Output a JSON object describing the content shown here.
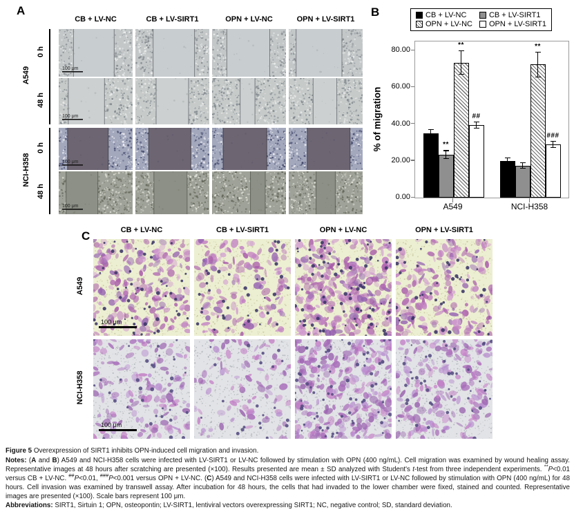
{
  "colors": {
    "bar_black": "#000000",
    "bar_gray": "#8f8f8f",
    "bar_white": "#ffffff",
    "bar_border": "#000000",
    "hatch_stroke": "#6e6e6e",
    "stain_purple": "#a757a9",
    "stain_magenta": "#c27fc3",
    "nuclei_navy": "#3a3666",
    "invasion_bg_yellow": "#edefd2",
    "invasion_bg_gray": "#e2e3e6"
  },
  "panel_a": {
    "label": "A",
    "column_headers": [
      "CB + LV-NC",
      "CB + LV-SIRT1",
      "OPN + LV-NC",
      "OPN + LV-SIRT1"
    ],
    "row_groups": [
      {
        "cell_line": "A549",
        "times": [
          "0 h",
          "48 h"
        ]
      },
      {
        "cell_line": "NCI-H358",
        "times": [
          "0 h",
          "48 h"
        ]
      }
    ],
    "scale_bar_label": "100 μm",
    "wound_rows": [
      {
        "cell_line": "A549",
        "time": "0 h",
        "style": "a549_0h",
        "gaps": [
          [
            0.2,
            0.75
          ],
          [
            0.24,
            0.8
          ],
          [
            0.2,
            0.78
          ],
          [
            0.1,
            0.72
          ]
        ]
      },
      {
        "cell_line": "A549",
        "time": "48 h",
        "style": "a549_48h",
        "gaps": [
          [
            0.13,
            0.62
          ],
          [
            0.28,
            0.72
          ],
          [
            0.38,
            0.58
          ],
          [
            0.33,
            0.65
          ]
        ]
      },
      {
        "cell_line": "NCI-H358",
        "time": "0 h",
        "style": "nci_0h",
        "gaps": [
          [
            0.12,
            0.67
          ],
          [
            0.18,
            0.75
          ],
          [
            0.15,
            0.74
          ],
          [
            0.25,
            0.83
          ]
        ]
      },
      {
        "cell_line": "NCI-H358",
        "time": "48 h",
        "style": "nci_48h",
        "gaps": [
          [
            0.1,
            0.53
          ],
          [
            0.25,
            0.7
          ],
          [
            0.52,
            0.72
          ],
          [
            0.37,
            0.63
          ]
        ]
      }
    ]
  },
  "panel_b": {
    "label": "B"
  },
  "chart_data": {
    "type": "bar",
    "title": "",
    "categories": [
      "A549",
      "NCI-H358"
    ],
    "series": [
      {
        "name": "CB + LV-NC",
        "fill": "black",
        "values": [
          35.0,
          20.0
        ],
        "errors": [
          2.3,
          1.8
        ],
        "sig": [
          "",
          ""
        ]
      },
      {
        "name": "CB + LV-SIRT1",
        "fill": "gray",
        "values": [
          23.5,
          17.5
        ],
        "errors": [
          2.3,
          1.7
        ],
        "sig": [
          "**",
          ""
        ]
      },
      {
        "name": "OPN + LV-NC",
        "fill": "hatch",
        "values": [
          73.5,
          72.5
        ],
        "errors": [
          6.5,
          7.0
        ],
        "sig": [
          "**",
          "**"
        ]
      },
      {
        "name": "OPN + LV-SIRT1",
        "fill": "white",
        "values": [
          39.5,
          29.0
        ],
        "errors": [
          1.8,
          1.8
        ],
        "sig": [
          "##",
          "###"
        ]
      }
    ],
    "xlabel": "",
    "ylabel": "% of migration",
    "ylim": [
      0,
      85
    ],
    "ytick_values": [
      0,
      20,
      40,
      60,
      80
    ],
    "yticks": [
      "0.00",
      "20.00",
      "40.00",
      "60.00",
      "80.00"
    ],
    "legend_position": "top",
    "grid": false
  },
  "panel_c": {
    "label": "C",
    "column_headers": [
      "CB + LV-NC",
      "CB + LV-SIRT1",
      "OPN + LV-NC",
      "OPN + LV-SIRT1"
    ],
    "rows": [
      {
        "cell_line": "A549",
        "style": "a549c",
        "densities": [
          0.55,
          0.38,
          0.88,
          0.5
        ]
      },
      {
        "cell_line": "NCI-H358",
        "style": "ncic",
        "densities": [
          0.35,
          0.22,
          0.7,
          0.45
        ]
      }
    ],
    "scale_bar_label": "100 μm"
  },
  "caption": {
    "title_segments": [
      {
        "t": "Figure 5 ",
        "b": true
      },
      {
        "t": "Overexpression of SIRT1 inhibits OPN-induced cell migration and invasion."
      }
    ],
    "notes_segments": [
      {
        "t": "Notes:",
        "b": true
      },
      {
        "t": " ("
      },
      {
        "t": "A",
        "b": true
      },
      {
        "t": " and "
      },
      {
        "t": "B",
        "b": true
      },
      {
        "t": ") A549 and NCI-H358 cells were infected with LV-SIRT1 or LV-NC followed by stimulation with OPN (400 ng/mL). Cell migration was examined by wound healing assay. Representative images at 48 hours after scratching are presented (×100). Results presented are mean ± SD analyzed with Student's "
      },
      {
        "t": "t",
        "i": true
      },
      {
        "t": "-test from three independent experiments. "
      },
      {
        "t": "**",
        "sup": true
      },
      {
        "t": "P",
        "i": true
      },
      {
        "t": "<0.01 versus CB + LV-NC. "
      },
      {
        "t": "##",
        "sup": true
      },
      {
        "t": "P",
        "i": true
      },
      {
        "t": "<0.01, "
      },
      {
        "t": "###",
        "sup": true
      },
      {
        "t": "P",
        "i": true
      },
      {
        "t": "<0.001 versus OPN + LV-NC. ("
      },
      {
        "t": "C",
        "b": true
      },
      {
        "t": ") A549 and NCI-H358 cells were infected with LV-SIRT1 or LV-NC followed by stimulation with OPN (400 ng/mL) for 48 hours. Cell invasion was examined by transwell assay. After incubation for 48 hours, the cells that had invaded to the lower chamber were fixed, stained and counted. Representative images are presented (×100). Scale bars represent 100 μm."
      }
    ],
    "abbreviations_segments": [
      {
        "t": "Abbreviations:",
        "b": true
      },
      {
        "t": " SIRT1, Sirtuin 1; OPN, osteopontin; LV-SIRT1, lentiviral vectors overexpressing SIRT1; NC, negative control; SD, standard deviation."
      }
    ]
  }
}
